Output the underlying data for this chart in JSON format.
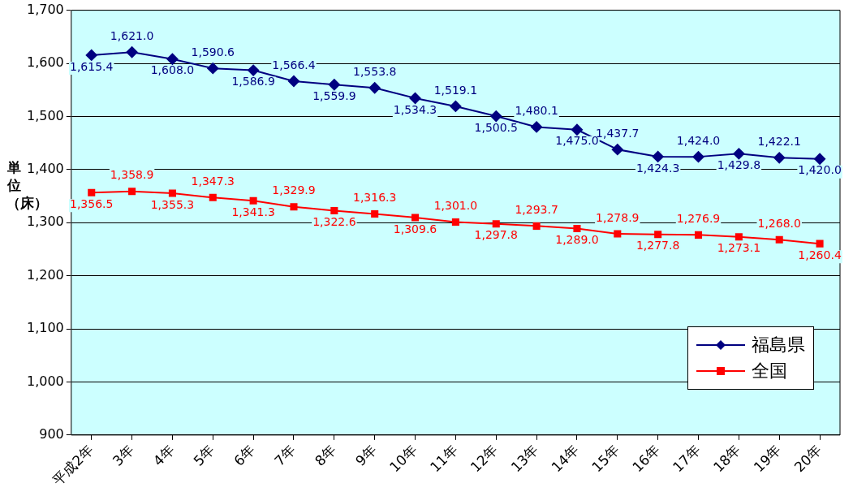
{
  "chart_data": {
    "type": "line",
    "ylabel": "単位（床）",
    "categories": [
      "平成2年",
      "3年",
      "4年",
      "5年",
      "6年",
      "7年",
      "8年",
      "9年",
      "10年",
      "11年",
      "12年",
      "13年",
      "14年",
      "15年",
      "16年",
      "17年",
      "18年",
      "19年",
      "20年"
    ],
    "series": [
      {
        "name": "福島県",
        "color": "#000080",
        "marker": "diamond",
        "values": [
          1615.4,
          1621.0,
          1608.0,
          1590.6,
          1586.9,
          1566.4,
          1559.9,
          1553.8,
          1534.3,
          1519.1,
          1500.5,
          1480.1,
          1475.0,
          1437.7,
          1424.3,
          1424.0,
          1429.8,
          1422.1,
          1420.0
        ],
        "value_labels": [
          "1,615.4",
          "1,621.0",
          "1,608.0",
          "1,590.6",
          "1,586.9",
          "1,566.4",
          "1,559.9",
          "1,553.8",
          "1,534.3",
          "1,519.1",
          "1,500.5",
          "1,480.1",
          "1,475.0",
          "1,437.7",
          "1,424.3",
          "1,424.0",
          "1,429.8",
          "1,422.1",
          "1,420.0"
        ]
      },
      {
        "name": "全国",
        "color": "#ff0000",
        "marker": "square",
        "values": [
          1356.5,
          1358.9,
          1355.3,
          1347.3,
          1341.3,
          1329.9,
          1322.6,
          1316.3,
          1309.6,
          1301.0,
          1297.8,
          1293.7,
          1289.0,
          1278.9,
          1277.8,
          1276.9,
          1273.1,
          1268.0,
          1260.4
        ],
        "value_labels": [
          "1,356.5",
          "1,358.9",
          "1,355.3",
          "1,347.3",
          "1,341.3",
          "1,329.9",
          "1,322.6",
          "1,316.3",
          "1,309.6",
          "1,301.0",
          "1,297.8",
          "1,293.7",
          "1,289.0",
          "1,278.9",
          "1,277.8",
          "1,276.9",
          "1,273.1",
          "1,268.0",
          "1,260.4"
        ]
      }
    ],
    "ylim": [
      900,
      1700
    ],
    "yticks": [
      {
        "value": 900,
        "label": "900"
      },
      {
        "value": 1000,
        "label": "1,000"
      },
      {
        "value": 1100,
        "label": "1,100"
      },
      {
        "value": 1200,
        "label": "1,200"
      },
      {
        "value": 1300,
        "label": "1,300"
      },
      {
        "value": 1400,
        "label": "1,400"
      },
      {
        "value": 1500,
        "label": "1,500"
      },
      {
        "value": 1600,
        "label": "1,600"
      },
      {
        "value": 1700,
        "label": "1,700"
      }
    ],
    "grid": "y",
    "legend": "bottom right",
    "line_style": "solid"
  }
}
